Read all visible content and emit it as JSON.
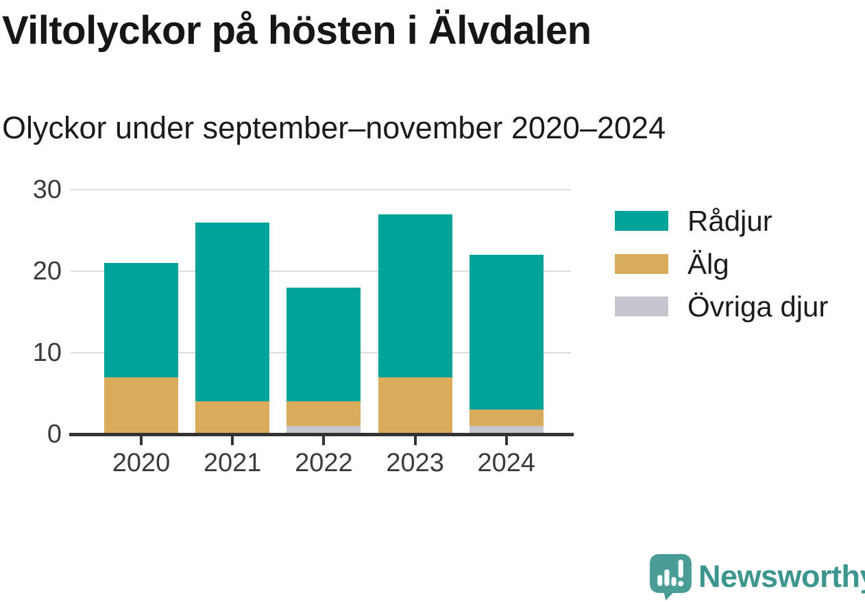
{
  "header": {
    "title": "Viltolyckor på hösten i Älvdalen",
    "subtitle": "Olyckor under september–november 2020–2024"
  },
  "chart_data": {
    "type": "bar",
    "stacked": true,
    "title": "Viltolyckor på hösten i Älvdalen",
    "subtitle": "Olyckor under september–november 2020–2024",
    "categories": [
      "2020",
      "2021",
      "2022",
      "2023",
      "2024"
    ],
    "series": [
      {
        "name": "Rådjur",
        "color": "#00A29A",
        "values": [
          14,
          22,
          14,
          20,
          19
        ]
      },
      {
        "name": "Älg",
        "color": "#D9AC5C",
        "values": [
          7,
          4,
          3,
          7,
          2
        ]
      },
      {
        "name": "Övriga djur",
        "color": "#C6C6CE",
        "values": [
          0,
          0,
          1,
          0,
          1
        ]
      }
    ],
    "stack_order_bottom_up": [
      "Övriga djur",
      "Älg",
      "Rådjur"
    ],
    "totals": [
      21,
      26,
      18,
      27,
      22
    ],
    "xlabel": "",
    "ylabel": "",
    "ylim": [
      0,
      30
    ],
    "yticks": [
      0,
      10,
      20,
      30
    ],
    "grid": true,
    "legend_position": "right"
  },
  "branding": {
    "name": "Newsworthy",
    "text_color": "#3D9590",
    "mark_color": "#4A9D97"
  },
  "colors": {
    "background": "#FFFFFF",
    "grid": "#DDDDDD",
    "axis": "#333333",
    "tick_label": "#3A3A3A"
  }
}
